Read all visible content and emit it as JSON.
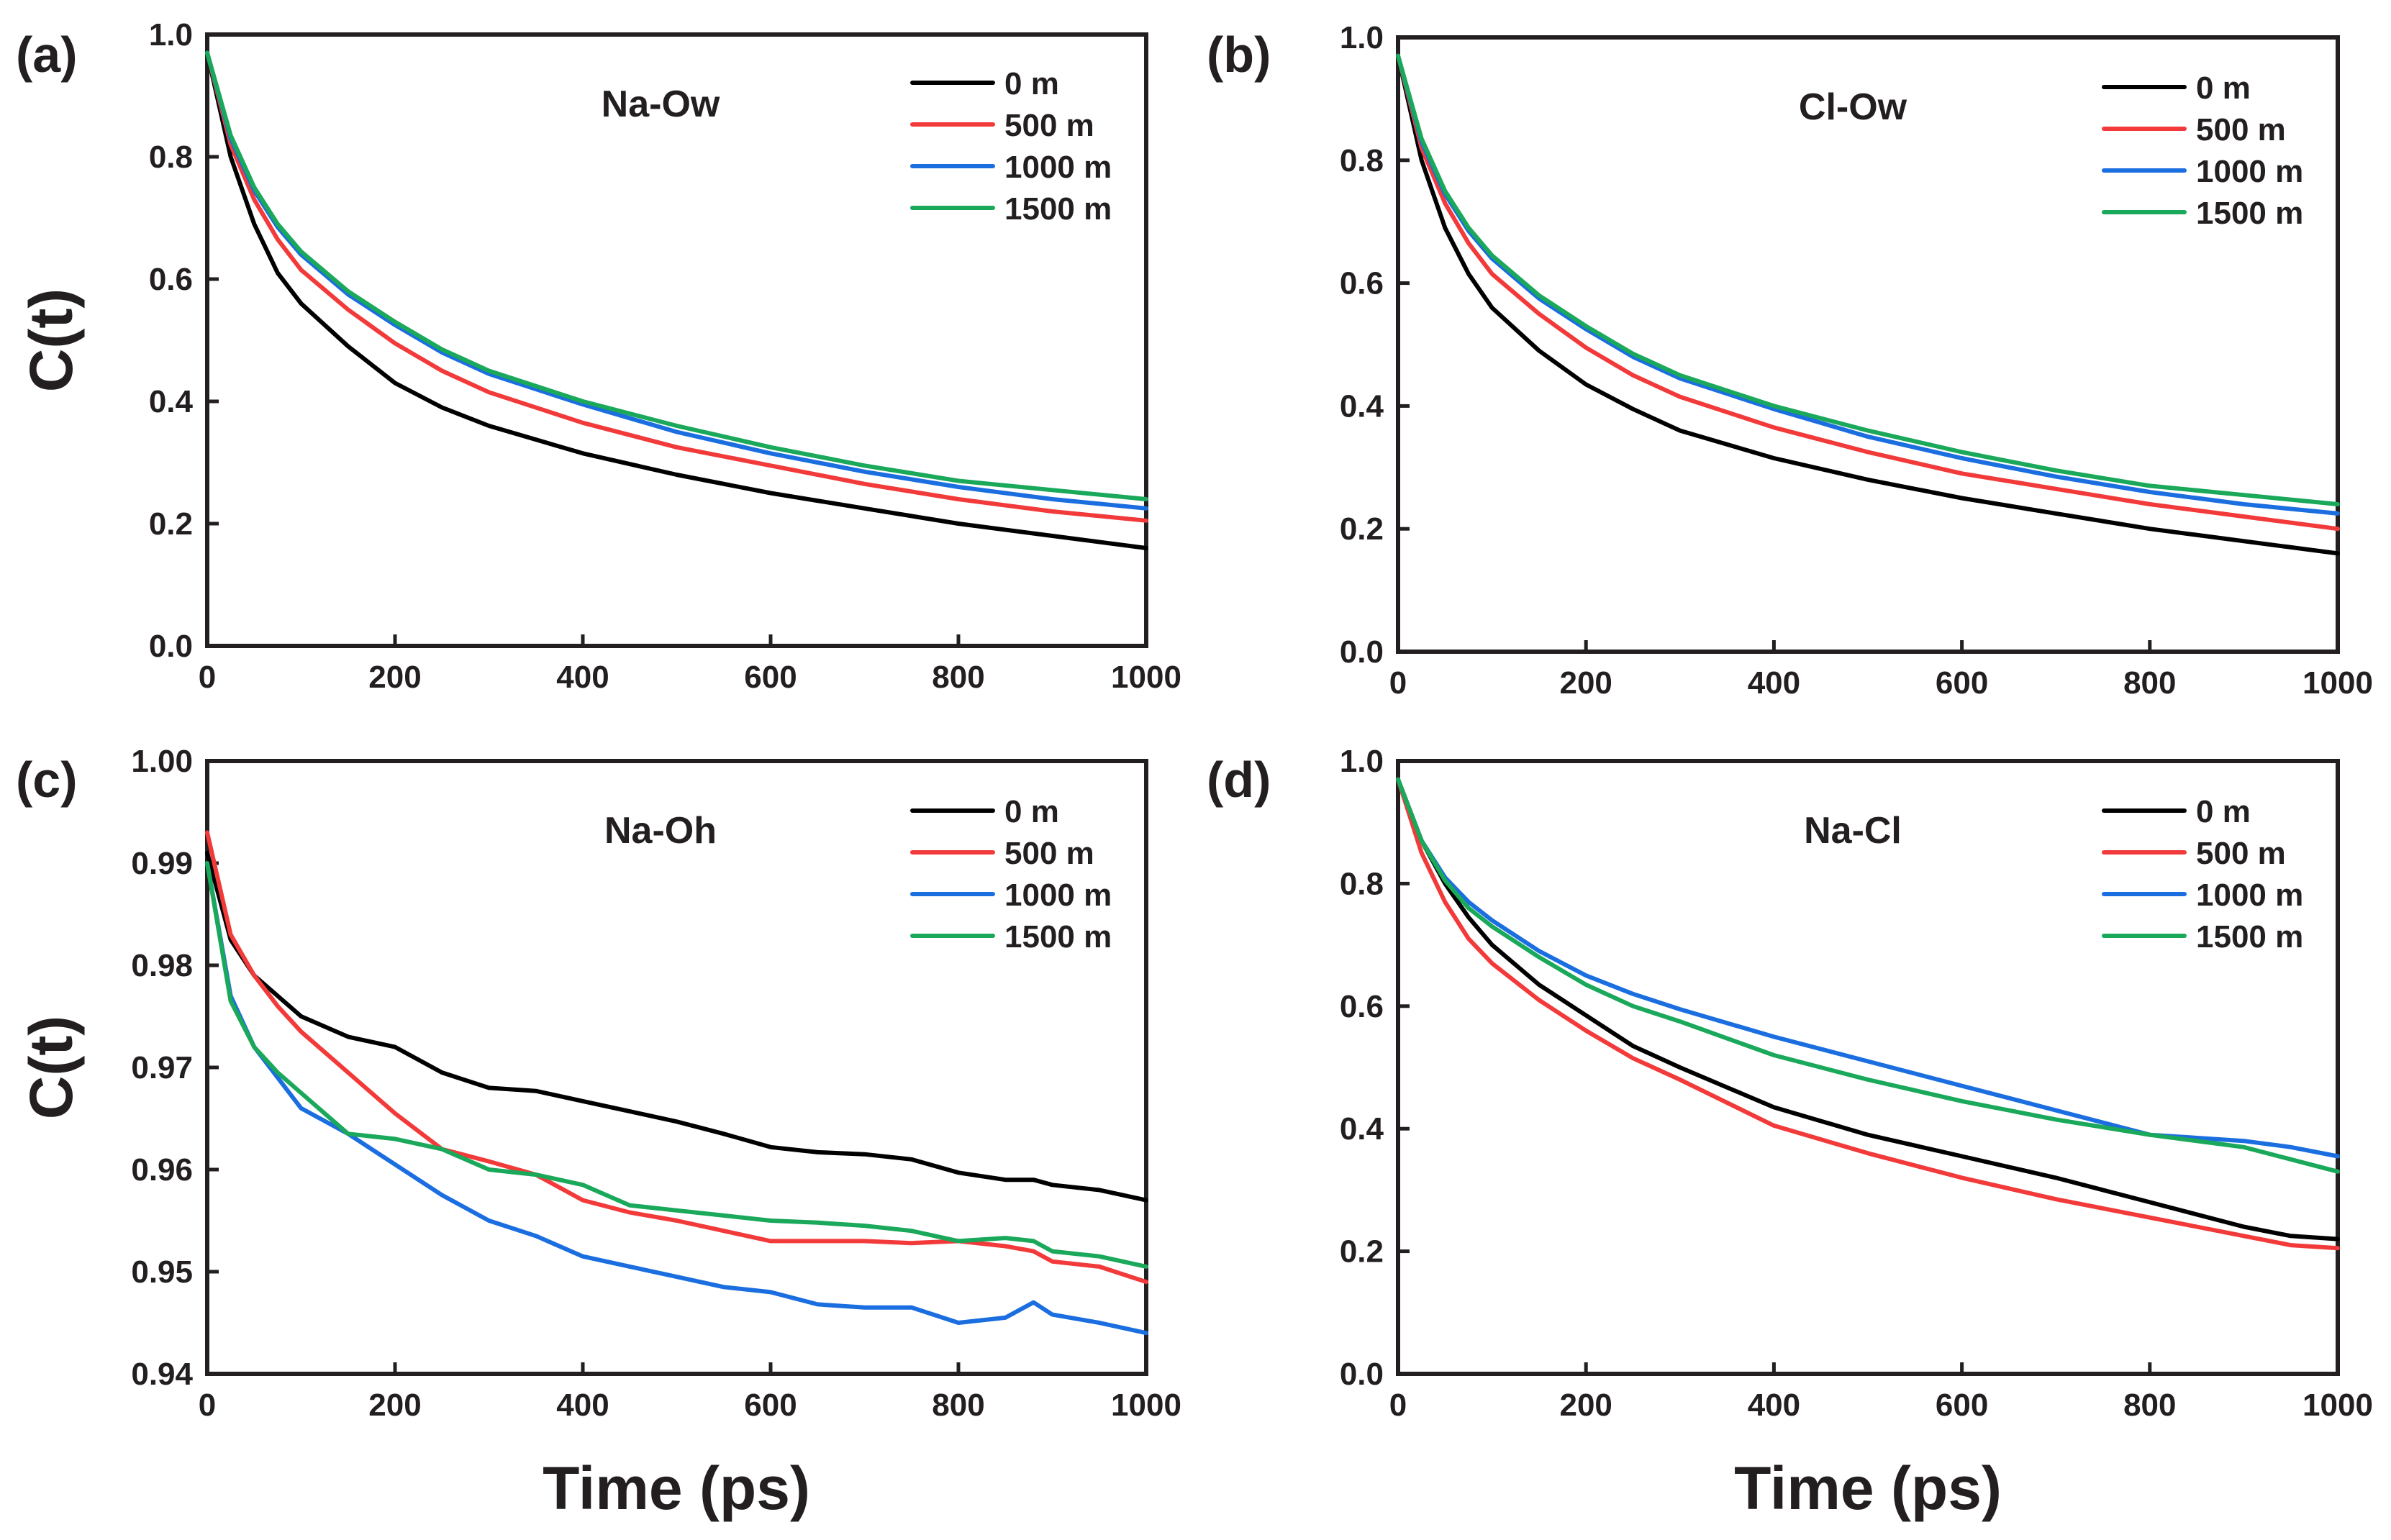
{
  "figure": {
    "xlabel": "Time (ps)",
    "ylabel": "C(t)"
  },
  "colors": {
    "0 m": "#000000",
    "500 m": "#f23a3a",
    "1000 m": "#1b6ee0",
    "1500 m": "#1aa85a"
  },
  "chart_data": [
    {
      "type": "line",
      "panel_label": "(a)",
      "title": "Na-Ow",
      "xlabel": "Time (ps)",
      "ylabel": "C(t)",
      "xlim": [
        0,
        1000
      ],
      "ylim": [
        0.0,
        1.0
      ],
      "xticks": [
        "0",
        "200",
        "400",
        "600",
        "800",
        "1000"
      ],
      "yticks": [
        "0.0",
        "0.2",
        "0.4",
        "0.6",
        "0.8",
        "1.0"
      ],
      "legend_position": "top-right",
      "x": [
        0,
        25,
        50,
        75,
        100,
        150,
        200,
        250,
        300,
        400,
        500,
        600,
        700,
        800,
        900,
        1000
      ],
      "series": [
        {
          "name": "0 m",
          "values": [
            0.97,
            0.8,
            0.69,
            0.61,
            0.56,
            0.49,
            0.43,
            0.39,
            0.36,
            0.315,
            0.28,
            0.25,
            0.225,
            0.2,
            0.18,
            0.16
          ]
        },
        {
          "name": "500 m",
          "values": [
            0.97,
            0.82,
            0.73,
            0.665,
            0.615,
            0.55,
            0.495,
            0.45,
            0.415,
            0.365,
            0.325,
            0.295,
            0.265,
            0.24,
            0.22,
            0.205
          ]
        },
        {
          "name": "1000 m",
          "values": [
            0.97,
            0.83,
            0.745,
            0.685,
            0.64,
            0.575,
            0.525,
            0.48,
            0.445,
            0.395,
            0.35,
            0.315,
            0.285,
            0.26,
            0.24,
            0.225
          ]
        },
        {
          "name": "1500 m",
          "values": [
            0.97,
            0.835,
            0.75,
            0.69,
            0.645,
            0.58,
            0.53,
            0.485,
            0.45,
            0.4,
            0.36,
            0.325,
            0.295,
            0.27,
            0.255,
            0.24
          ]
        }
      ]
    },
    {
      "type": "line",
      "panel_label": "(b)",
      "title": "Cl-Ow",
      "xlabel": "Time (ps)",
      "ylabel": "C(t)",
      "xlim": [
        0,
        1000
      ],
      "ylim": [
        0.0,
        1.0
      ],
      "xticks": [
        "0",
        "200",
        "400",
        "600",
        "800",
        "1000"
      ],
      "yticks": [
        "0.0",
        "0.2",
        "0.4",
        "0.6",
        "0.8",
        "1.0"
      ],
      "legend_position": "top-right",
      "x": [
        0,
        25,
        50,
        75,
        100,
        150,
        200,
        250,
        300,
        400,
        500,
        600,
        700,
        800,
        900,
        1000
      ],
      "series": [
        {
          "name": "0 m",
          "values": [
            0.97,
            0.8,
            0.69,
            0.615,
            0.56,
            0.49,
            0.435,
            0.395,
            0.36,
            0.315,
            0.28,
            0.25,
            0.225,
            0.2,
            0.18,
            0.16
          ]
        },
        {
          "name": "500 m",
          "values": [
            0.97,
            0.82,
            0.73,
            0.665,
            0.615,
            0.55,
            0.495,
            0.45,
            0.415,
            0.365,
            0.325,
            0.29,
            0.265,
            0.24,
            0.22,
            0.2
          ]
        },
        {
          "name": "1000 m",
          "values": [
            0.97,
            0.83,
            0.745,
            0.685,
            0.64,
            0.575,
            0.525,
            0.48,
            0.445,
            0.395,
            0.35,
            0.315,
            0.285,
            0.26,
            0.24,
            0.225
          ]
        },
        {
          "name": "1500 m",
          "values": [
            0.97,
            0.835,
            0.75,
            0.69,
            0.645,
            0.58,
            0.53,
            0.485,
            0.45,
            0.4,
            0.36,
            0.325,
            0.295,
            0.27,
            0.255,
            0.24
          ]
        }
      ]
    },
    {
      "type": "line",
      "panel_label": "(c)",
      "title": "Na-Oh",
      "xlabel": "Time (ps)",
      "ylabel": "C(t)",
      "xlim": [
        0,
        1000
      ],
      "ylim": [
        0.94,
        1.0
      ],
      "xticks": [
        "0",
        "200",
        "400",
        "600",
        "800",
        "1000"
      ],
      "yticks": [
        "0.94",
        "0.95",
        "0.96",
        "0.97",
        "0.98",
        "0.99",
        "1.00"
      ],
      "legend_position": "top-right",
      "x": [
        0,
        25,
        50,
        75,
        100,
        150,
        200,
        250,
        300,
        350,
        400,
        450,
        500,
        550,
        600,
        650,
        700,
        750,
        800,
        850,
        880,
        900,
        950,
        1000
      ],
      "series": [
        {
          "name": "0 m",
          "values": [
            0.991,
            0.9825,
            0.979,
            0.977,
            0.975,
            0.973,
            0.972,
            0.9695,
            0.968,
            0.9677,
            0.9667,
            0.9657,
            0.9647,
            0.9635,
            0.9622,
            0.9617,
            0.9615,
            0.961,
            0.9597,
            0.959,
            0.959,
            0.9585,
            0.958,
            0.957
          ]
        },
        {
          "name": "500 m",
          "values": [
            0.993,
            0.983,
            0.979,
            0.976,
            0.9735,
            0.9695,
            0.9655,
            0.962,
            0.9608,
            0.9595,
            0.957,
            0.9558,
            0.955,
            0.954,
            0.953,
            0.953,
            0.953,
            0.9528,
            0.953,
            0.9525,
            0.952,
            0.951,
            0.9505,
            0.949
          ]
        },
        {
          "name": "1000 m",
          "values": [
            0.99,
            0.977,
            0.972,
            0.969,
            0.966,
            0.9635,
            0.9605,
            0.9575,
            0.955,
            0.9535,
            0.9515,
            0.9505,
            0.9495,
            0.9485,
            0.948,
            0.9468,
            0.9465,
            0.9465,
            0.945,
            0.9455,
            0.947,
            0.9458,
            0.945,
            0.944
          ]
        },
        {
          "name": "1500 m",
          "values": [
            0.99,
            0.9765,
            0.972,
            0.9695,
            0.9675,
            0.9635,
            0.963,
            0.962,
            0.96,
            0.9595,
            0.9585,
            0.9565,
            0.956,
            0.9555,
            0.955,
            0.9548,
            0.9545,
            0.954,
            0.953,
            0.9533,
            0.953,
            0.952,
            0.9515,
            0.9505
          ]
        }
      ]
    },
    {
      "type": "line",
      "panel_label": "(d)",
      "title": "Na-Cl",
      "xlabel": "Time (ps)",
      "ylabel": "C(t)",
      "xlim": [
        0,
        1000
      ],
      "ylim": [
        0.0,
        1.0
      ],
      "xticks": [
        "0",
        "200",
        "400",
        "600",
        "800",
        "1000"
      ],
      "yticks": [
        "0.0",
        "0.2",
        "0.4",
        "0.6",
        "0.8",
        "1.0"
      ],
      "legend_position": "top-right",
      "x": [
        0,
        25,
        50,
        75,
        100,
        150,
        200,
        250,
        300,
        400,
        500,
        600,
        700,
        800,
        900,
        950,
        1000
      ],
      "series": [
        {
          "name": "0 m",
          "values": [
            0.97,
            0.87,
            0.8,
            0.745,
            0.7,
            0.635,
            0.585,
            0.535,
            0.5,
            0.435,
            0.39,
            0.355,
            0.32,
            0.28,
            0.24,
            0.225,
            0.22
          ]
        },
        {
          "name": "500 m",
          "values": [
            0.97,
            0.85,
            0.77,
            0.71,
            0.67,
            0.61,
            0.56,
            0.515,
            0.48,
            0.405,
            0.36,
            0.32,
            0.285,
            0.255,
            0.225,
            0.21,
            0.205
          ]
        },
        {
          "name": "1000 m",
          "values": [
            0.97,
            0.87,
            0.81,
            0.77,
            0.74,
            0.69,
            0.65,
            0.62,
            0.595,
            0.55,
            0.51,
            0.47,
            0.43,
            0.39,
            0.38,
            0.37,
            0.355
          ]
        },
        {
          "name": "1500 m",
          "values": [
            0.97,
            0.87,
            0.805,
            0.76,
            0.73,
            0.68,
            0.635,
            0.6,
            0.575,
            0.52,
            0.48,
            0.445,
            0.415,
            0.39,
            0.37,
            0.35,
            0.33
          ]
        }
      ]
    }
  ]
}
